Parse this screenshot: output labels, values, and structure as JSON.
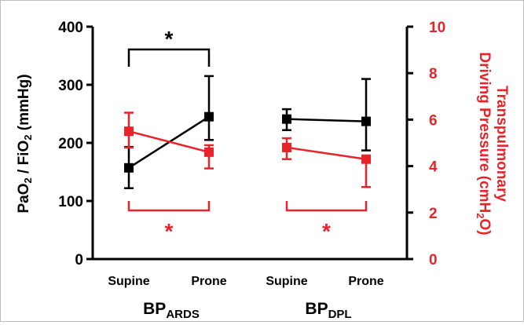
{
  "chart_data": {
    "type": "line",
    "groups": [
      {
        "label_main": "BP",
        "label_sub": "ARDS",
        "categories": [
          "Supine",
          "Prone"
        ]
      },
      {
        "label_main": "BP",
        "label_sub": "DPL",
        "categories": [
          "Supine",
          "Prone"
        ]
      }
    ],
    "y_left": {
      "label_parts": [
        "PaO",
        "2",
        " / FiO",
        "2",
        " (mmHg)"
      ],
      "ylim": [
        0,
        400
      ],
      "ticks": [
        "0",
        "100",
        "200",
        "300",
        "400"
      ],
      "color": "#000000"
    },
    "y_right": {
      "label_line1": "Transpulmonary",
      "label_line2_parts": [
        "Driving Pressure (cmH",
        "2",
        "O)"
      ],
      "ylim": [
        0,
        10
      ],
      "ticks": [
        "0",
        "2",
        "4",
        "6",
        "8",
        "10"
      ],
      "color": "#e8232a"
    },
    "series": [
      {
        "axis": "left",
        "color": "#000000",
        "group": 0,
        "values": [
          157,
          245
        ],
        "err_low": [
          122,
          205
        ],
        "err_high": [
          193,
          315
        ]
      },
      {
        "axis": "left",
        "color": "#000000",
        "group": 1,
        "values": [
          241,
          237
        ],
        "err_low": [
          222,
          187
        ],
        "err_high": [
          258,
          310
        ]
      },
      {
        "axis": "right",
        "color": "#e8232a",
        "group": 0,
        "values": [
          5.5,
          4.6
        ],
        "err_low": [
          4.8,
          3.9
        ],
        "err_high": [
          6.3,
          4.9
        ]
      },
      {
        "axis": "right",
        "color": "#e8232a",
        "group": 1,
        "values": [
          4.8,
          4.3
        ],
        "err_low": [
          4.3,
          3.1
        ],
        "err_high": [
          5.2,
          4.3
        ]
      }
    ],
    "significance": [
      {
        "symbol": "*",
        "color": "#000000",
        "group": 0,
        "position": "above"
      },
      {
        "symbol": "*",
        "color": "#e8232a",
        "group": 0,
        "position": "below"
      },
      {
        "symbol": "*",
        "color": "#e8232a",
        "group": 1,
        "position": "below"
      }
    ]
  }
}
